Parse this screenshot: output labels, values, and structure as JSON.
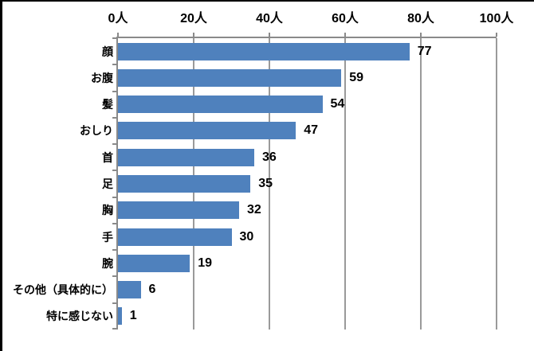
{
  "chart_data": {
    "type": "bar",
    "orientation": "horizontal",
    "title": "",
    "categories": [
      "顔",
      "お腹",
      "髪",
      "おしり",
      "首",
      "足",
      "胸",
      "手",
      "腕",
      "その他（具体的に）",
      "特に感じない"
    ],
    "values": [
      77,
      59,
      54,
      47,
      36,
      35,
      32,
      30,
      19,
      6,
      1
    ],
    "data_labels_visible": true,
    "x_axis": {
      "position": "top",
      "min": 0,
      "max": 100,
      "tick_values": [
        0,
        20,
        40,
        60,
        80,
        100
      ],
      "tick_labels": [
        "0人",
        "20人",
        "40人",
        "60人",
        "80人",
        "100人"
      ]
    },
    "grid": true,
    "legend": false,
    "colors": {
      "bar": "#4F81BD",
      "axis": "#8A8A8A",
      "gridline": "#9A9A9A",
      "text": "#000000",
      "background": "#FFFFFF",
      "frame": "#000000"
    }
  }
}
